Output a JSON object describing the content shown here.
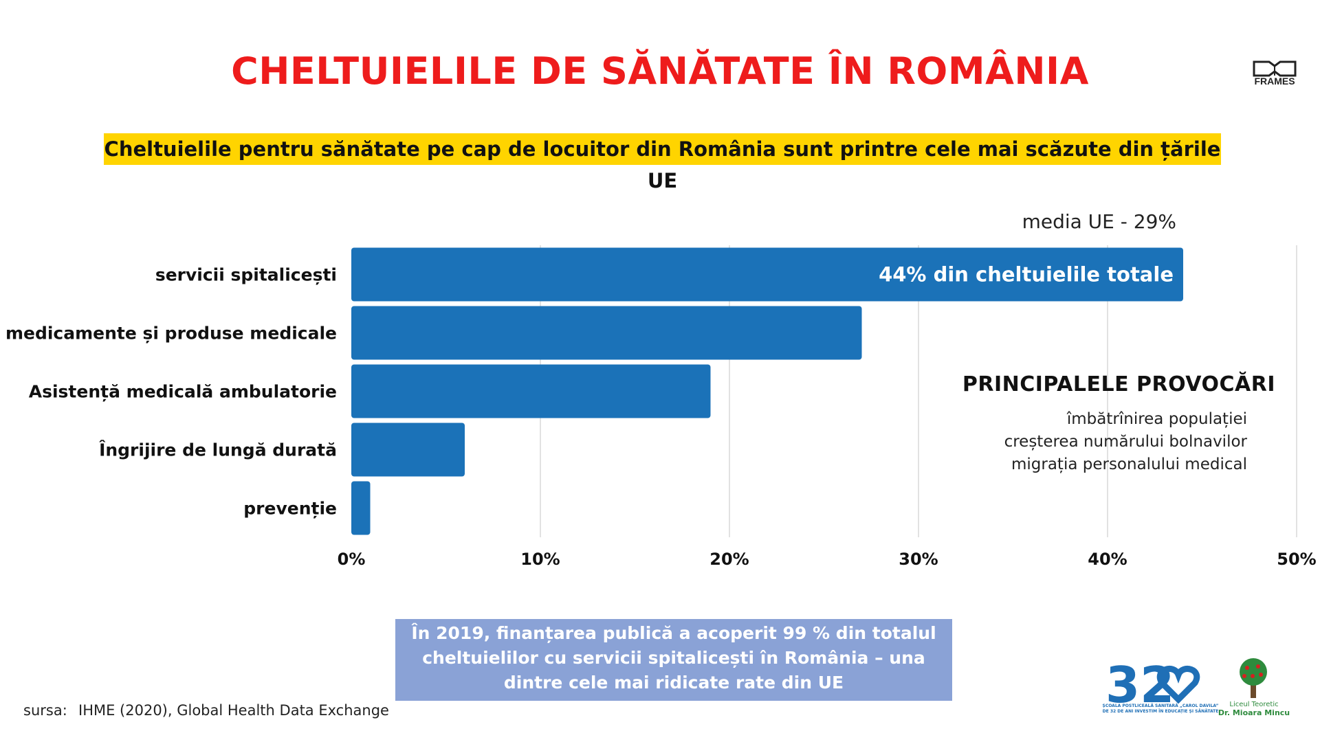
{
  "title": "CHELTUIELILE DE SĂNĂTATE ÎN ROMÂNIA",
  "subtitle": "Cheltuielile pentru sănătate pe cap de locuitor din România sunt printre cele mai scăzute din țările UE",
  "logos": {
    "frames": "FRAMES",
    "school_32_caption_line1": "ȘCOALA POSTLICEALĂ SANITARĂ „CAROL DAVILA”",
    "school_32_caption_line2": "DE 32 DE ANI INVESTIM ÎN EDUCAȚIE ȘI SĂNĂTATE",
    "liceu_line1": "Liceul Teoretic",
    "liceu_line2": "Dr. Mioara Mincu"
  },
  "chart_data": {
    "type": "bar",
    "orientation": "horizontal",
    "categories": [
      "servicii spitalicești",
      "medicamente și produse medicale",
      "Asistență medicală ambulatorie",
      "Îngrijire de lungă durată",
      "prevenție"
    ],
    "values": [
      44,
      27,
      19,
      6,
      1
    ],
    "xlim": [
      0,
      50
    ],
    "x_ticks": [
      "0%",
      "10%",
      "20%",
      "30%",
      "40%",
      "50%"
    ],
    "grid": "vertical",
    "bar_color": "#1b72b8",
    "bar_label": "44% din cheltuielile totale",
    "annotation": "media UE - 29%"
  },
  "challenges": {
    "title": "PRINCIPALELE PROVOCĂRI",
    "items": [
      "îmbătrînirea populației",
      "creșterea numărului bolnavilor",
      "migrația personalului medical"
    ]
  },
  "note": "În 2019, finanțarea publică a acoperit 99 % din totalul cheltuielilor cu servicii spitalicești în România – una dintre cele mai ridicate rate din UE",
  "source": {
    "prefix": "sursa:",
    "text": "IHME (2020), Global Health Data Exchange"
  },
  "colors": {
    "title": "#ee1c1c",
    "highlight": "#ffd400",
    "bar": "#1b72b8",
    "note_box": "#8aa2d6"
  }
}
